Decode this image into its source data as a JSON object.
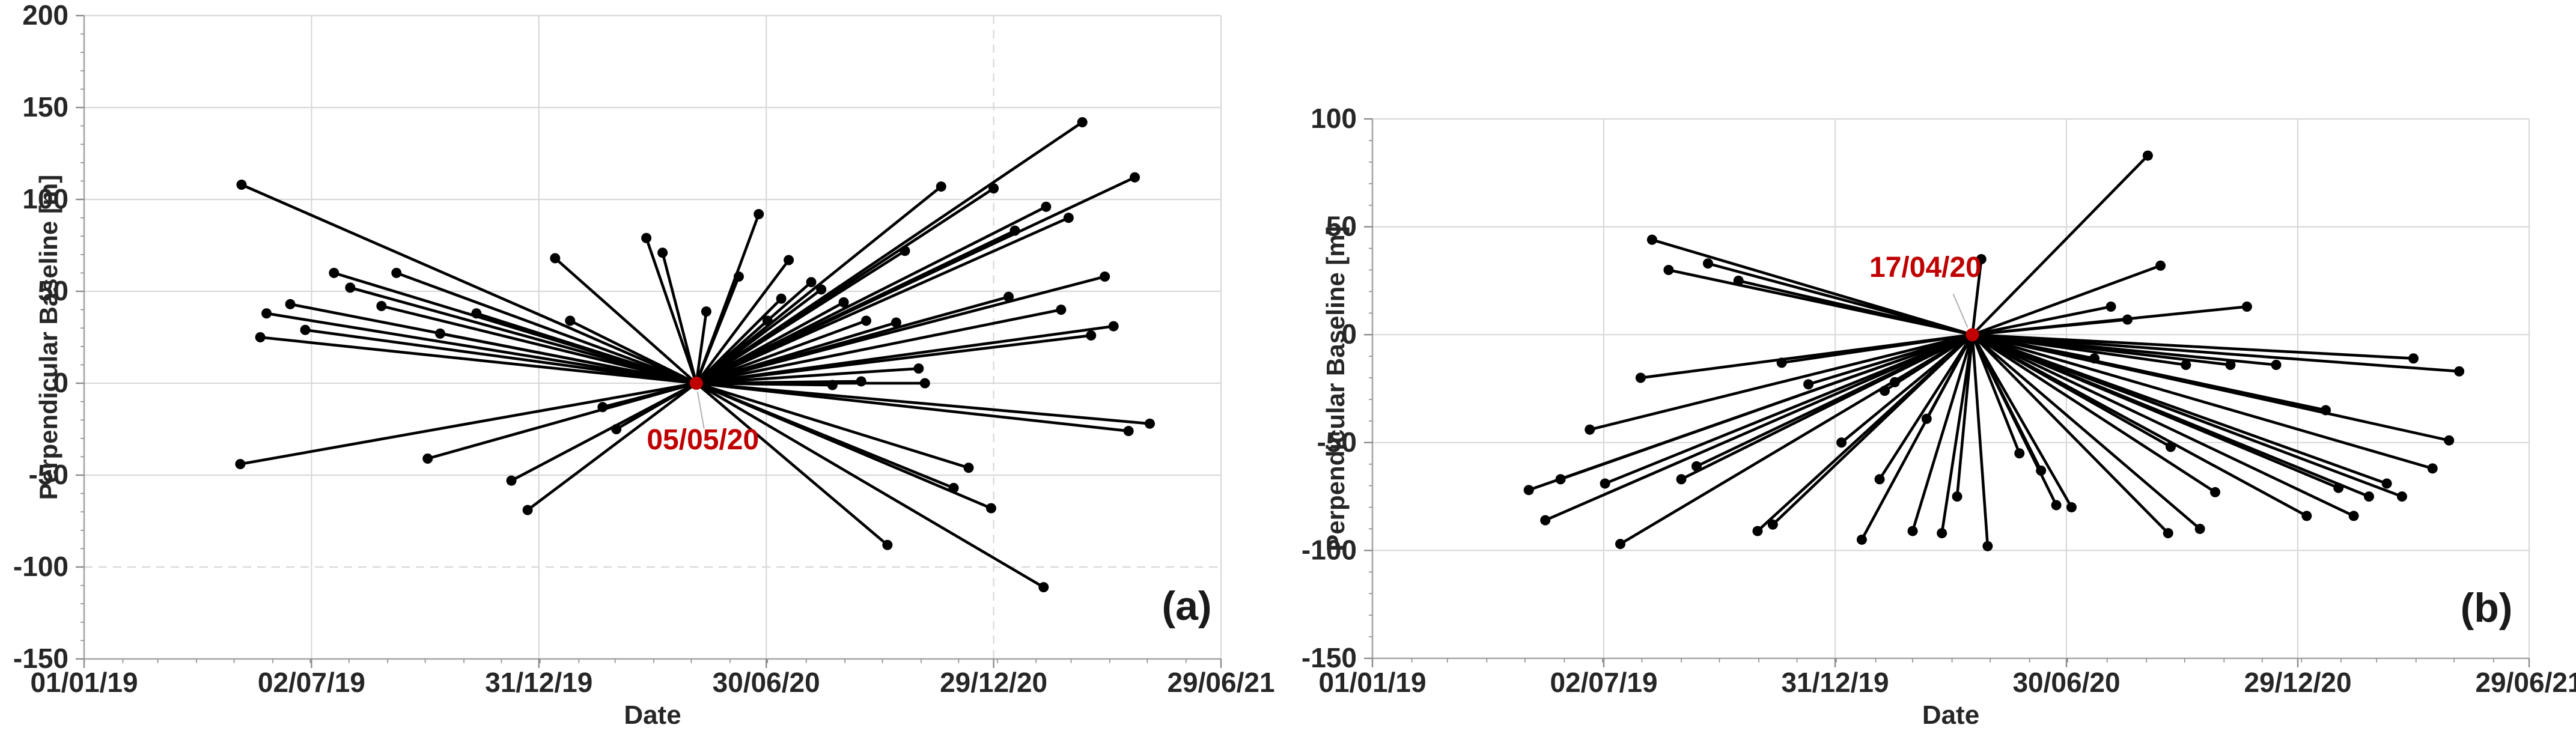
{
  "figure": {
    "background": "#ffffff",
    "description": "Two InSAR perpendicular-baseline star plots: master image (red) connected to slave images (black dots)"
  },
  "styles": {
    "line_color": "#000000",
    "point_color": "#000000",
    "grid_color": "#d9d9d9",
    "axis_color": "#a6a6a6",
    "tick_color": "#8c8c8c",
    "text_color": "#262626",
    "master_color": "#c00000",
    "leader_color": "#b0b0b0"
  },
  "chart_data": [
    {
      "type": "scatter",
      "panel_label": "(a)",
      "xlabel": "Date",
      "ylabel": "Perpendicular Baseline [m]",
      "x_range": [
        "01/01/19",
        "29/06/21"
      ],
      "ylim": [
        -150,
        200
      ],
      "yticks": [
        200,
        150,
        100,
        50,
        0,
        -50,
        -100,
        -150
      ],
      "xticks": [
        "01/01/19",
        "02/07/19",
        "31/12/19",
        "30/06/20",
        "29/12/20",
        "29/06/21"
      ],
      "grid": {
        "on": true,
        "dashed_horizontal": [
          -100
        ],
        "dashed_vertical": [
          "29/12/20"
        ]
      },
      "legend": "none",
      "master": {
        "date": "05/05/20",
        "value": 0,
        "label": "05/05/20",
        "label_side": "below"
      },
      "points": [
        [
          "07/05/19",
          108
        ],
        [
          "06/05/19",
          -44
        ],
        [
          "22/05/19",
          25
        ],
        [
          "27/05/19",
          38
        ],
        [
          "15/06/19",
          43
        ],
        [
          "27/06/19",
          29
        ],
        [
          "20/07/19",
          60
        ],
        [
          "02/08/19",
          52
        ],
        [
          "27/08/19",
          42
        ],
        [
          "08/09/19",
          60
        ],
        [
          "03/10/19",
          -41
        ],
        [
          "13/10/19",
          27
        ],
        [
          "11/11/19",
          38
        ],
        [
          "09/12/19",
          -53
        ],
        [
          "22/12/19",
          -69
        ],
        [
          "13/01/20",
          68
        ],
        [
          "25/01/20",
          34
        ],
        [
          "20/02/20",
          -13
        ],
        [
          "02/03/20",
          -25
        ],
        [
          "26/03/20",
          79
        ],
        [
          "08/04/20",
          71
        ],
        [
          "13/05/20",
          39
        ],
        [
          "08/06/20",
          58
        ],
        [
          "24/06/20",
          92
        ],
        [
          "01/07/20",
          34
        ],
        [
          "12/07/20",
          46
        ],
        [
          "18/07/20",
          67
        ],
        [
          "05/08/20",
          55
        ],
        [
          "13/08/20",
          51
        ],
        [
          "22/08/20",
          -1
        ],
        [
          "31/08/20",
          44
        ],
        [
          "14/09/20",
          1
        ],
        [
          "18/09/20",
          34
        ],
        [
          "05/10/20",
          -88
        ],
        [
          "12/10/20",
          33
        ],
        [
          "19/10/20",
          72
        ],
        [
          "30/10/20",
          8
        ],
        [
          "04/11/20",
          0
        ],
        [
          "17/11/20",
          107
        ],
        [
          "27/11/20",
          -57
        ],
        [
          "09/12/20",
          -46
        ],
        [
          "27/12/20",
          -68
        ],
        [
          "29/12/20",
          106
        ],
        [
          "10/01/21",
          47
        ],
        [
          "15/01/21",
          83
        ],
        [
          "07/02/21",
          -111
        ],
        [
          "09/02/21",
          96
        ],
        [
          "21/02/21",
          40
        ],
        [
          "27/02/21",
          90
        ],
        [
          "10/03/21",
          142
        ],
        [
          "17/03/21",
          26
        ],
        [
          "28/03/21",
          58
        ],
        [
          "04/04/21",
          31
        ],
        [
          "16/04/21",
          -26
        ],
        [
          "21/04/21",
          112
        ],
        [
          "03/05/21",
          -22
        ]
      ]
    },
    {
      "type": "scatter",
      "panel_label": "(b)",
      "xlabel": "Date",
      "ylabel": "Perpendicular Baseline [m]",
      "x_range": [
        "01/01/19",
        "29/06/21"
      ],
      "ylim": [
        -150,
        100
      ],
      "yticks": [
        100,
        50,
        0,
        -50,
        -100,
        -150
      ],
      "xticks": [
        "01/01/19",
        "02/07/19",
        "31/12/19",
        "30/06/20",
        "29/12/20",
        "29/06/21"
      ],
      "grid": {
        "on": true,
        "dashed_horizontal": [],
        "dashed_vertical": []
      },
      "legend": "none",
      "master": {
        "date": "17/04/20",
        "value": 0,
        "label": "17/04/20",
        "label_side": "above-left"
      },
      "points": [
        [
          "04/05/19",
          -72
        ],
        [
          "17/05/19",
          -86
        ],
        [
          "29/05/19",
          -67
        ],
        [
          "21/06/19",
          -44
        ],
        [
          "03/07/19",
          -69
        ],
        [
          "15/07/19",
          -97
        ],
        [
          "31/07/19",
          -20
        ],
        [
          "09/08/19",
          44
        ],
        [
          "22/08/19",
          30
        ],
        [
          "01/09/19",
          -67
        ],
        [
          "13/09/19",
          -61
        ],
        [
          "22/09/19",
          33
        ],
        [
          "16/10/19",
          25
        ],
        [
          "31/10/19",
          -91
        ],
        [
          "12/11/19",
          -88
        ],
        [
          "19/11/19",
          -13
        ],
        [
          "10/12/19",
          -23
        ],
        [
          "05/01/20",
          -50
        ],
        [
          "21/01/20",
          -95
        ],
        [
          "04/02/20",
          -67
        ],
        [
          "08/02/20",
          -26
        ],
        [
          "16/02/20",
          -22
        ],
        [
          "01/03/20",
          -91
        ],
        [
          "12/03/20",
          -39
        ],
        [
          "24/03/20",
          -92
        ],
        [
          "05/04/20",
          -75
        ],
        [
          "24/04/20",
          35
        ],
        [
          "29/04/20",
          -98
        ],
        [
          "24/05/20",
          -55
        ],
        [
          "10/06/20",
          -63
        ],
        [
          "22/06/20",
          -79
        ],
        [
          "04/07/20",
          -80
        ],
        [
          "22/07/20",
          -11
        ],
        [
          "04/08/20",
          13
        ],
        [
          "17/08/20",
          7
        ],
        [
          "02/09/20",
          83
        ],
        [
          "12/09/20",
          32
        ],
        [
          "18/09/20",
          -92
        ],
        [
          "20/09/20",
          -52
        ],
        [
          "02/10/20",
          -14
        ],
        [
          "13/10/20",
          -90
        ],
        [
          "25/10/20",
          -73
        ],
        [
          "06/11/20",
          -14
        ],
        [
          "19/11/20",
          13
        ],
        [
          "12/12/20",
          -14
        ],
        [
          "05/01/21",
          -84
        ],
        [
          "20/01/21",
          -35
        ],
        [
          "30/01/21",
          -71
        ],
        [
          "11/02/21",
          -84
        ],
        [
          "23/02/21",
          -75
        ],
        [
          "09/03/21",
          -69
        ],
        [
          "21/03/21",
          -75
        ],
        [
          "30/03/21",
          -11
        ],
        [
          "14/04/21",
          -62
        ],
        [
          "27/04/21",
          -49
        ],
        [
          "05/05/21",
          -17
        ]
      ]
    }
  ]
}
